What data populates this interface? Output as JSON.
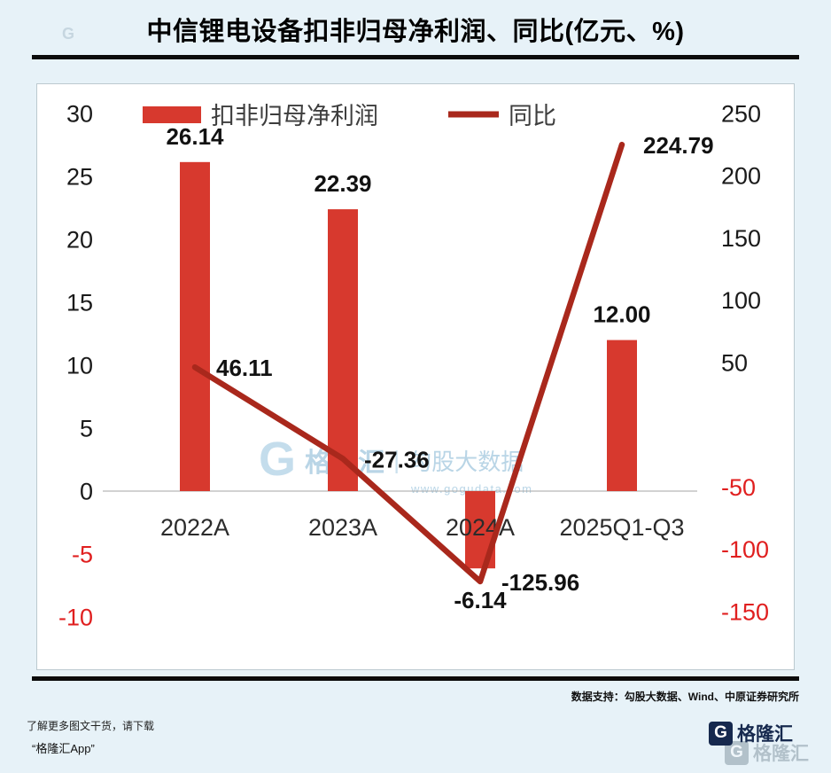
{
  "header": {
    "title": "中信锂电设备扣非归母净利润、同比(亿元、%)"
  },
  "chart_data": {
    "type": "combo",
    "title": "中信锂电设备扣非归母净利润、同比(亿元、%)",
    "unit_note": "亿元、%",
    "categories": [
      "2022A",
      "2023A",
      "2024A",
      "2025Q1-Q3"
    ],
    "series": [
      {
        "name": "扣非归母净利润",
        "type": "bar",
        "axis": "left",
        "color": "#d7392e",
        "values": [
          26.14,
          22.39,
          -6.14,
          12.0
        ],
        "labels": [
          "26.14",
          "22.39",
          "-6.14",
          "12.00"
        ]
      },
      {
        "name": "同比",
        "type": "line",
        "axis": "right",
        "color": "#a9281c",
        "values": [
          46.11,
          -27.36,
          -125.96,
          224.79
        ],
        "labels": [
          "46.11",
          "-27.36",
          "-125.96",
          "224.79"
        ]
      }
    ],
    "left_axis": {
      "min": -10,
      "max": 30,
      "ticks": [
        30,
        25,
        20,
        15,
        10,
        5,
        0,
        -5,
        -10
      ]
    },
    "right_axis": {
      "min": -150,
      "max": 250,
      "ticks": [
        250,
        200,
        150,
        100,
        50,
        -50,
        -100,
        -150
      ]
    },
    "grid": false,
    "legend_position": "top-center",
    "colors": {
      "tick": "#1a1a1a",
      "negative_tick": "#e01f1f",
      "axis_line": "#a6a6a6",
      "category_label": "#2b2b2b",
      "data_label": "#121212",
      "legend_text": "#3d3d3d"
    }
  },
  "watermark": {
    "icon": "G",
    "brand": "格隆汇",
    "separator": "|",
    "name": "勾股大数据",
    "url": "www.gogudata.com"
  },
  "footer": {
    "source": "数据支持：勾股大数据、Wind、中原证券研究所",
    "promo_line1": "了解更多图文干货，请下载",
    "promo_line2": "“格隆汇App”"
  },
  "brand_logo": {
    "icon": "G",
    "text": "格隆汇"
  },
  "corner_mark": "G"
}
